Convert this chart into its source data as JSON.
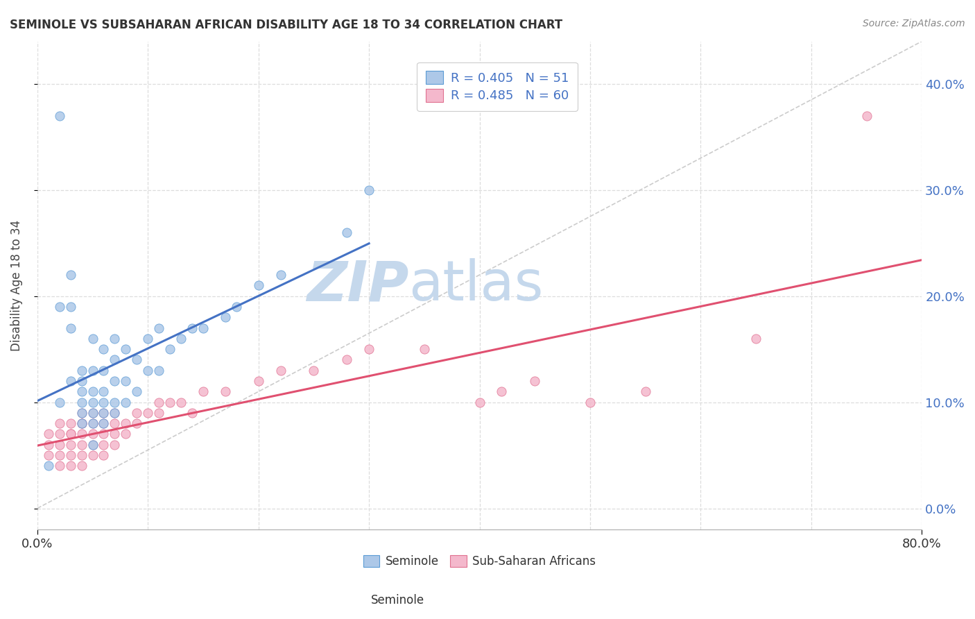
{
  "title": "SEMINOLE VS SUBSAHARAN AFRICAN DISABILITY AGE 18 TO 34 CORRELATION CHART",
  "source_text": "Source: ZipAtlas.com",
  "ylabel": "Disability Age 18 to 34",
  "xlim": [
    0.0,
    0.8
  ],
  "ylim": [
    -0.02,
    0.44
  ],
  "plot_ylim": [
    -0.02,
    0.44
  ],
  "xticks": [
    0.0,
    0.8
  ],
  "yticks": [
    0.0,
    0.1,
    0.2,
    0.3,
    0.4
  ],
  "seminole_R": 0.405,
  "seminole_N": 51,
  "subsaharan_R": 0.485,
  "subsaharan_N": 60,
  "seminole_color": "#adc8e8",
  "seminole_edge_color": "#5b9bd5",
  "seminole_line_color": "#4472c4",
  "subsaharan_color": "#f4b8cc",
  "subsaharan_edge_color": "#e07090",
  "subsaharan_line_color": "#e05070",
  "trendline_ref_color": "#cccccc",
  "background_color": "#ffffff",
  "grid_color": "#dddddd",
  "watermark_zip": "ZIP",
  "watermark_atlas": "atlas",
  "watermark_color": "#c5d8ec",
  "legend_label_color": "#4472c4",
  "right_axis_color": "#4472c4",
  "seminole_x": [
    0.01,
    0.02,
    0.02,
    0.02,
    0.03,
    0.03,
    0.03,
    0.03,
    0.04,
    0.04,
    0.04,
    0.04,
    0.04,
    0.04,
    0.05,
    0.05,
    0.05,
    0.05,
    0.05,
    0.05,
    0.05,
    0.06,
    0.06,
    0.06,
    0.06,
    0.06,
    0.06,
    0.07,
    0.07,
    0.07,
    0.07,
    0.07,
    0.08,
    0.08,
    0.08,
    0.09,
    0.09,
    0.1,
    0.1,
    0.11,
    0.11,
    0.12,
    0.13,
    0.14,
    0.15,
    0.17,
    0.18,
    0.2,
    0.22,
    0.28,
    0.3
  ],
  "seminole_y": [
    0.04,
    0.37,
    0.19,
    0.1,
    0.19,
    0.22,
    0.17,
    0.12,
    0.08,
    0.09,
    0.1,
    0.11,
    0.12,
    0.13,
    0.06,
    0.08,
    0.09,
    0.1,
    0.11,
    0.13,
    0.16,
    0.08,
    0.09,
    0.1,
    0.11,
    0.13,
    0.15,
    0.09,
    0.1,
    0.12,
    0.14,
    0.16,
    0.1,
    0.12,
    0.15,
    0.11,
    0.14,
    0.13,
    0.16,
    0.13,
    0.17,
    0.15,
    0.16,
    0.17,
    0.17,
    0.18,
    0.19,
    0.21,
    0.22,
    0.26,
    0.3
  ],
  "subsaharan_x": [
    0.01,
    0.01,
    0.01,
    0.02,
    0.02,
    0.02,
    0.02,
    0.02,
    0.03,
    0.03,
    0.03,
    0.03,
    0.03,
    0.03,
    0.04,
    0.04,
    0.04,
    0.04,
    0.04,
    0.04,
    0.04,
    0.05,
    0.05,
    0.05,
    0.05,
    0.05,
    0.06,
    0.06,
    0.06,
    0.06,
    0.06,
    0.07,
    0.07,
    0.07,
    0.07,
    0.08,
    0.08,
    0.09,
    0.09,
    0.1,
    0.11,
    0.11,
    0.12,
    0.13,
    0.14,
    0.15,
    0.17,
    0.2,
    0.22,
    0.25,
    0.28,
    0.3,
    0.35,
    0.4,
    0.42,
    0.45,
    0.5,
    0.55,
    0.65,
    0.75
  ],
  "subsaharan_y": [
    0.05,
    0.06,
    0.07,
    0.04,
    0.05,
    0.06,
    0.07,
    0.08,
    0.04,
    0.05,
    0.06,
    0.07,
    0.07,
    0.08,
    0.04,
    0.05,
    0.06,
    0.07,
    0.08,
    0.08,
    0.09,
    0.05,
    0.06,
    0.07,
    0.08,
    0.09,
    0.05,
    0.06,
    0.07,
    0.08,
    0.09,
    0.06,
    0.07,
    0.08,
    0.09,
    0.07,
    0.08,
    0.08,
    0.09,
    0.09,
    0.09,
    0.1,
    0.1,
    0.1,
    0.09,
    0.11,
    0.11,
    0.12,
    0.13,
    0.13,
    0.14,
    0.15,
    0.15,
    0.1,
    0.11,
    0.12,
    0.1,
    0.11,
    0.16,
    0.37
  ]
}
